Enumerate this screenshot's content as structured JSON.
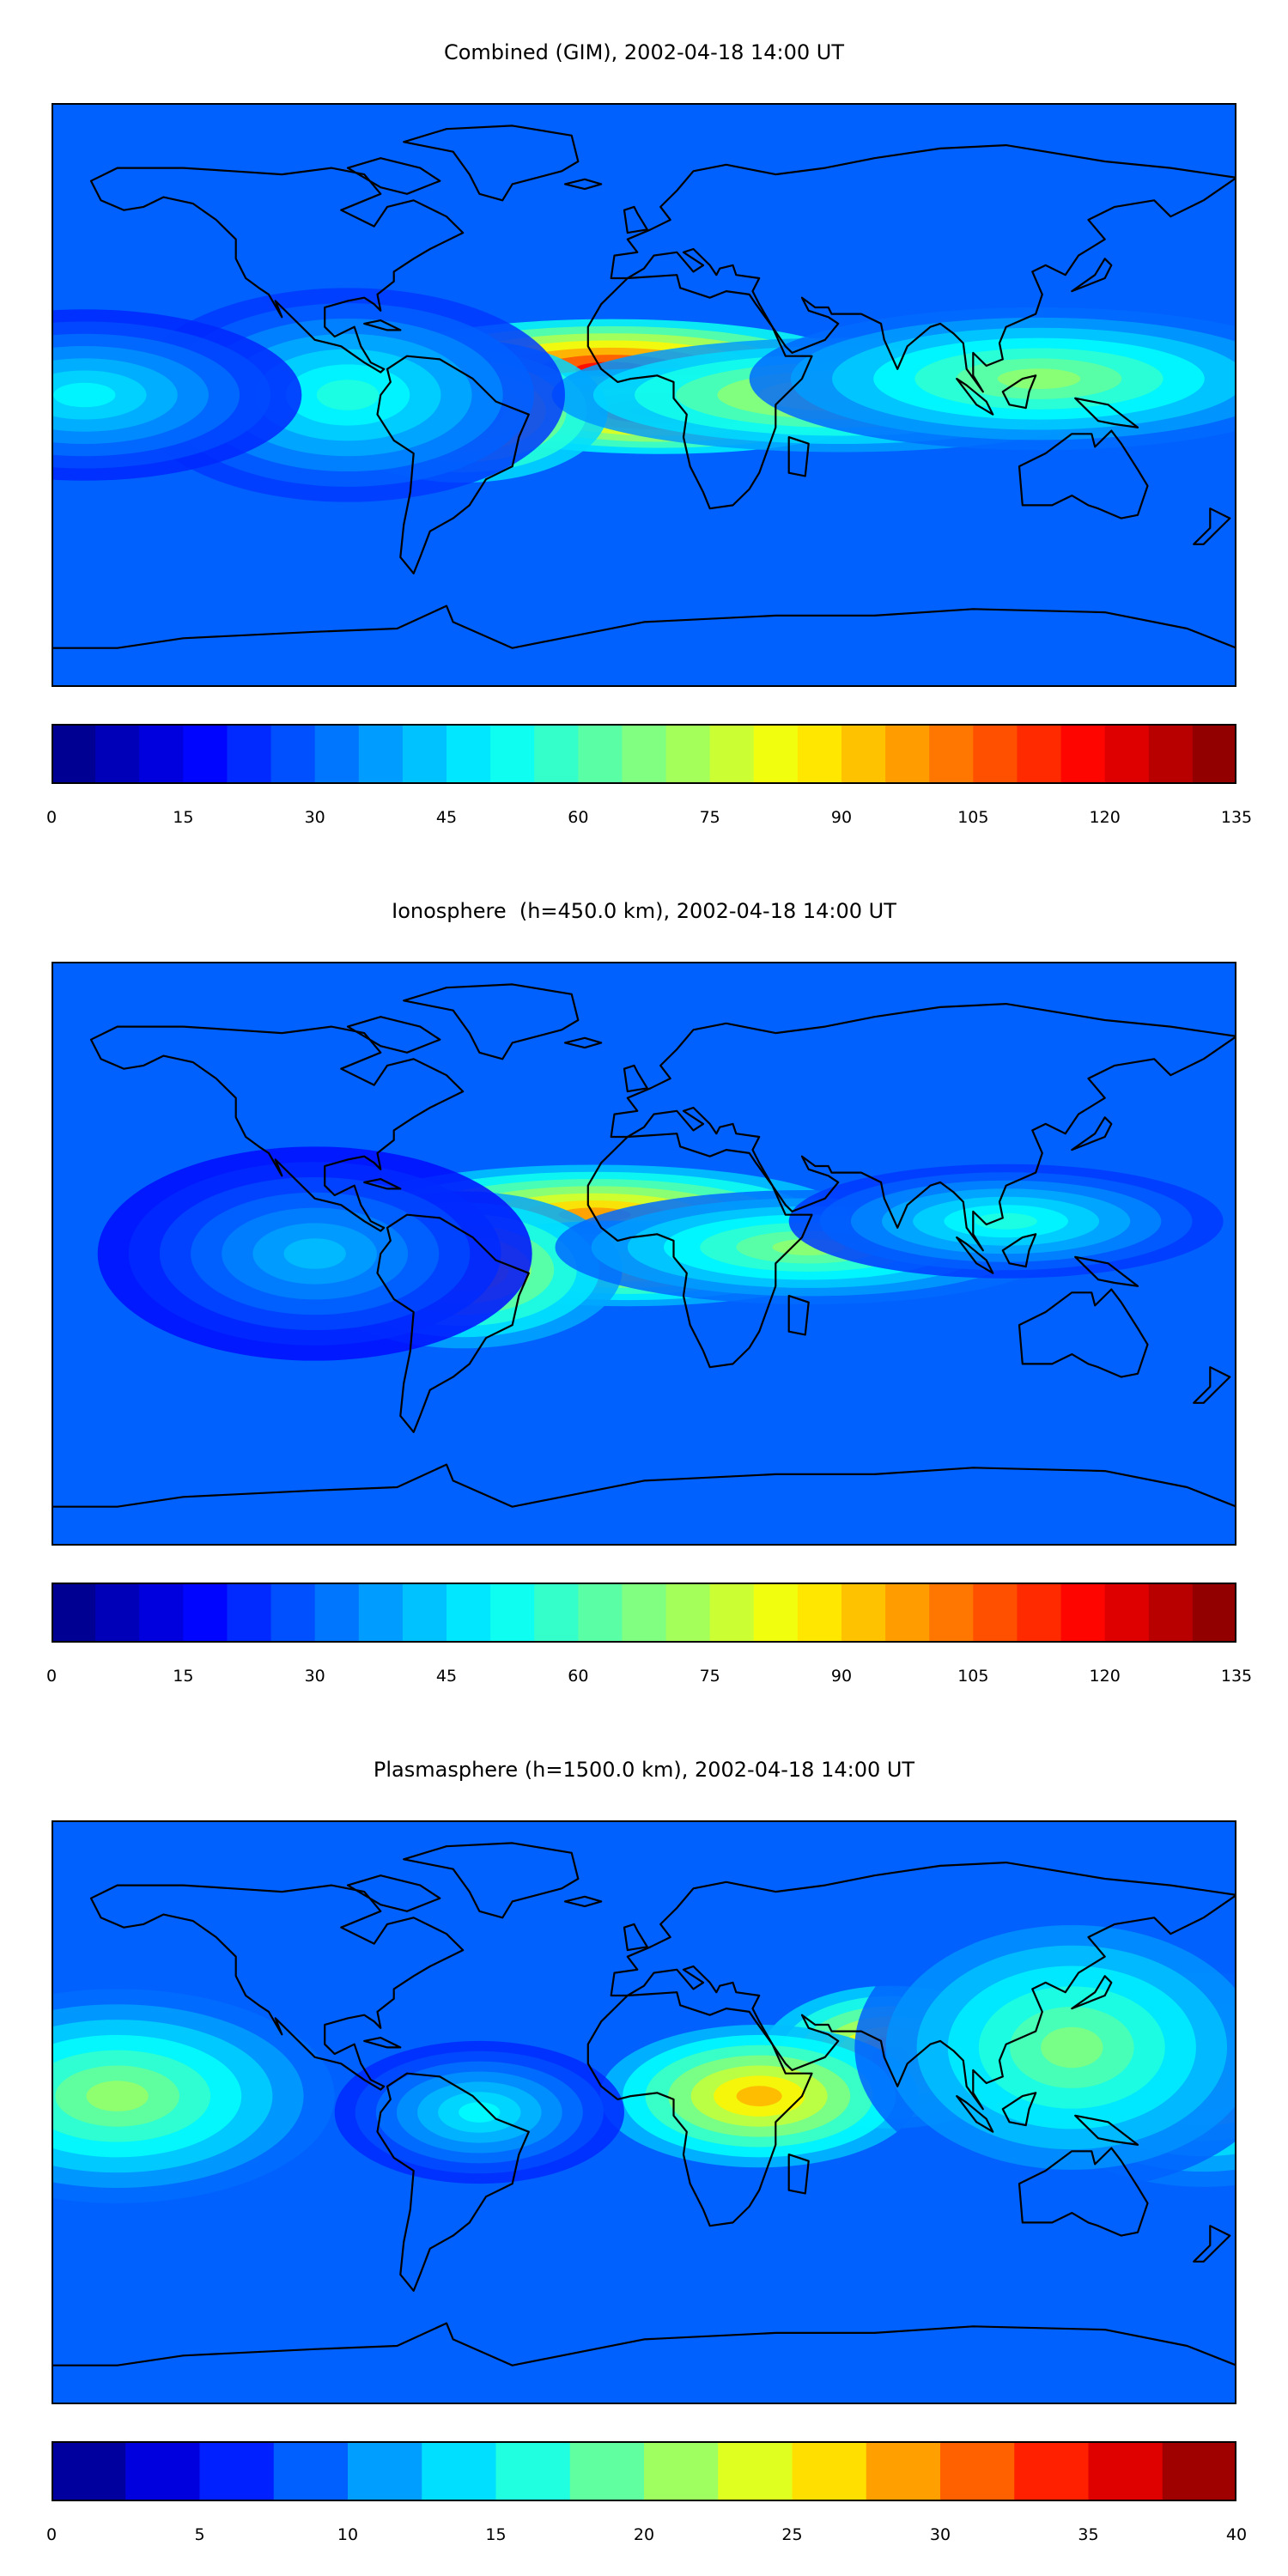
{
  "chart_data": [
    {
      "type": "heatmap",
      "title": "Combined (GIM), 2002-04-18 14:00 UT",
      "colormap": "jet",
      "levels": [
        0,
        5,
        10,
        15,
        20,
        25,
        30,
        35,
        40,
        45,
        50,
        55,
        60,
        65,
        70,
        75,
        80,
        85,
        90,
        95,
        100,
        105,
        110,
        115,
        120,
        125,
        130,
        135
      ],
      "colorbar_ticks": [
        0,
        15,
        30,
        45,
        60,
        75,
        90,
        105,
        120,
        135
      ],
      "xlim": [
        -180,
        180
      ],
      "ylim": [
        -90,
        90
      ],
      "grid": false,
      "coastlines": true,
      "features": [
        {
          "lon": -10,
          "lat": 8,
          "value": 118,
          "spread_lon": 35,
          "spread_lat": 7
        },
        {
          "lon": 5,
          "lat": -5,
          "value": 112,
          "spread_lon": 30,
          "spread_lat": 6
        },
        {
          "lon": -55,
          "lat": -5,
          "value": 104,
          "spread_lon": 20,
          "spread_lat": 10
        },
        {
          "lon": 60,
          "lat": 0,
          "value": 85,
          "spread_lon": 40,
          "spread_lat": 8
        },
        {
          "lon": 120,
          "lat": 5,
          "value": 70,
          "spread_lon": 40,
          "spread_lat": 10
        },
        {
          "lon": -90,
          "lat": 0,
          "value": 55,
          "spread_lon": 30,
          "spread_lat": 15
        },
        {
          "lon": -170,
          "lat": 0,
          "value": 50,
          "spread_lon": 30,
          "spread_lat": 12
        }
      ]
    },
    {
      "type": "heatmap",
      "title": "Ionosphere  (h=450.0 km), 2002-04-18 14:00 UT",
      "colormap": "jet",
      "levels": [
        0,
        5,
        10,
        15,
        20,
        25,
        30,
        35,
        40,
        45,
        50,
        55,
        60,
        65,
        70,
        75,
        80,
        85,
        90,
        95,
        100,
        105,
        110,
        115,
        120,
        125,
        130,
        135
      ],
      "colorbar_ticks": [
        0,
        15,
        30,
        45,
        60,
        75,
        90,
        105,
        120,
        135
      ],
      "xlim": [
        -180,
        180
      ],
      "ylim": [
        -90,
        90
      ],
      "grid": false,
      "coastlines": true,
      "features": [
        {
          "lon": -15,
          "lat": 12,
          "value": 98,
          "spread_lon": 35,
          "spread_lat": 7
        },
        {
          "lon": -5,
          "lat": -3,
          "value": 92,
          "spread_lon": 30,
          "spread_lat": 6
        },
        {
          "lon": -55,
          "lat": -5,
          "value": 88,
          "spread_lon": 22,
          "spread_lat": 11
        },
        {
          "lon": 50,
          "lat": 2,
          "value": 70,
          "spread_lon": 35,
          "spread_lat": 8
        },
        {
          "lon": 110,
          "lat": 10,
          "value": 55,
          "spread_lon": 30,
          "spread_lat": 8
        },
        {
          "lon": -100,
          "lat": 0,
          "value": 42,
          "spread_lon": 30,
          "spread_lat": 15
        }
      ]
    },
    {
      "type": "heatmap",
      "title": "Plasmasphere (h=1500.0 km), 2002-04-18 14:00 UT",
      "colormap": "jet",
      "levels": [
        0,
        2.5,
        5,
        7.5,
        10,
        12.5,
        15,
        17.5,
        20,
        22.5,
        25,
        27.5,
        30,
        32.5,
        35,
        37.5,
        40
      ],
      "colorbar_ticks": [
        0,
        5,
        10,
        15,
        20,
        25,
        30,
        35,
        40
      ],
      "xlim": [
        -180,
        180
      ],
      "ylim": [
        -90,
        90
      ],
      "grid": false,
      "coastlines": true,
      "features": [
        {
          "lon": 75,
          "lat": 17,
          "value": 30,
          "spread_lon": 18,
          "spread_lat": 10
        },
        {
          "lon": 35,
          "lat": 5,
          "value": 28,
          "spread_lon": 22,
          "spread_lat": 10
        },
        {
          "lon": -160,
          "lat": 5,
          "value": 21,
          "spread_lon": 30,
          "spread_lat": 15
        },
        {
          "lon": 170,
          "lat": 10,
          "value": 22,
          "spread_lon": 25,
          "spread_lat": 15
        },
        {
          "lon": 130,
          "lat": 20,
          "value": 20,
          "spread_lon": 30,
          "spread_lat": 20
        },
        {
          "lon": -50,
          "lat": 0,
          "value": 15,
          "spread_lon": 20,
          "spread_lat": 10
        }
      ]
    }
  ]
}
